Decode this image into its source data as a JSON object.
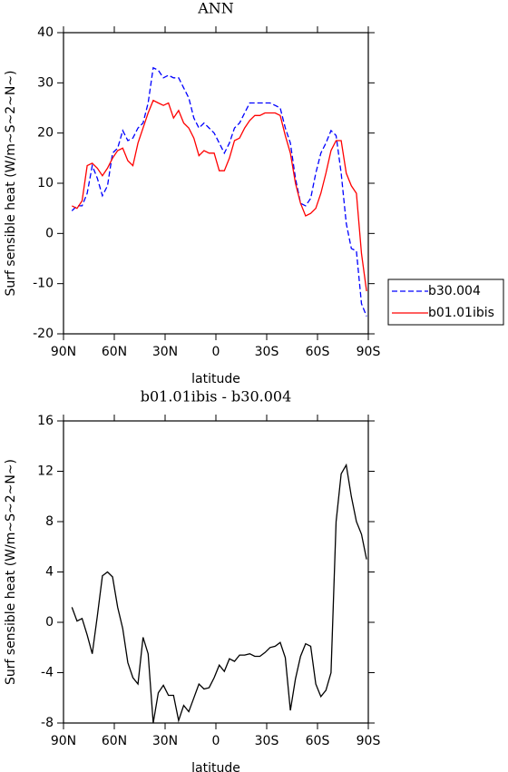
{
  "chart_data": [
    {
      "type": "line",
      "title": "ANN",
      "xlabel": "latitude",
      "ylabel": "Surf sensible heat (W/m~S~2~N~)",
      "x": [
        85,
        82,
        79,
        76,
        73,
        70,
        67,
        64,
        61,
        58,
        55,
        52,
        49,
        46,
        43,
        40,
        37,
        34,
        31,
        28,
        25,
        22,
        19,
        16,
        13,
        10,
        7,
        4,
        1,
        -2,
        -5,
        -8,
        -11,
        -14,
        -17,
        -20,
        -23,
        -26,
        -29,
        -32,
        -35,
        -38,
        -41,
        -44,
        -47,
        -50,
        -53,
        -56,
        -59,
        -62,
        -65,
        -68,
        -71,
        -74,
        -77,
        -80,
        -83,
        -86,
        -89
      ],
      "xlim": [
        90,
        -90
      ],
      "xticks": [
        {
          "value": 90,
          "label": "90N"
        },
        {
          "value": 60,
          "label": "60N"
        },
        {
          "value": 30,
          "label": "30N"
        },
        0,
        {
          "value": -30,
          "label": "30S"
        },
        {
          "value": -60,
          "label": "60S"
        },
        {
          "value": -90,
          "label": "90S"
        }
      ],
      "ylim": [
        -20,
        40
      ],
      "yticks": [
        -20,
        -10,
        0,
        10,
        20,
        30,
        40
      ],
      "legend": "right",
      "series": [
        {
          "name": "b30.004",
          "color": "#0000ff",
          "dash": true,
          "values": [
            4.5,
            5.5,
            5.5,
            8,
            13.5,
            11,
            7.5,
            9.5,
            16,
            17,
            20.5,
            18.5,
            19,
            21,
            22,
            26,
            33,
            32.5,
            31,
            31.5,
            31,
            31,
            29,
            27,
            23,
            21,
            22,
            21,
            20,
            18,
            16,
            18,
            21,
            22,
            24,
            26,
            26,
            26,
            26,
            26,
            25.5,
            25,
            21,
            18,
            11,
            6,
            5.5,
            7,
            12,
            16,
            18,
            20.5,
            19.5,
            12,
            2,
            -3,
            -3.5,
            -14,
            -16.5
          ]
        },
        {
          "name": "b01.01ibis",
          "color": "#ff0000",
          "dash": false,
          "values": [
            5.5,
            5,
            6.5,
            13.5,
            14,
            13,
            11.5,
            13,
            15,
            16.5,
            17,
            14.5,
            13.5,
            18,
            21,
            24,
            26.5,
            26,
            25.5,
            26,
            23,
            24.5,
            22,
            21,
            19,
            15.5,
            16.5,
            16,
            16,
            12.5,
            12.5,
            15,
            18.5,
            19,
            21,
            22.5,
            23.5,
            23.5,
            24,
            24,
            24,
            23.5,
            19.5,
            16,
            10,
            6,
            3.5,
            4,
            5,
            8,
            12,
            16.5,
            18.5,
            18.5,
            12,
            9.5,
            8,
            -4,
            -11.5
          ]
        }
      ]
    },
    {
      "type": "line",
      "title": "b01.01ibis - b30.004",
      "xlabel": "latitude",
      "ylabel": "Surf sensible heat (W/m~S~2~N~)",
      "x": [
        85,
        82,
        79,
        76,
        73,
        70,
        67,
        64,
        61,
        58,
        55,
        52,
        49,
        46,
        43,
        40,
        37,
        34,
        31,
        28,
        25,
        22,
        19,
        16,
        13,
        10,
        7,
        4,
        1,
        -2,
        -5,
        -8,
        -11,
        -14,
        -17,
        -20,
        -23,
        -26,
        -29,
        -32,
        -35,
        -38,
        -41,
        -44,
        -47,
        -50,
        -53,
        -56,
        -59,
        -62,
        -65,
        -68,
        -71,
        -74,
        -77,
        -80,
        -83,
        -86,
        -89
      ],
      "xlim": [
        90,
        -90
      ],
      "xticks": [
        {
          "value": 90,
          "label": "90N"
        },
        {
          "value": 60,
          "label": "60N"
        },
        {
          "value": 30,
          "label": "30N"
        },
        0,
        {
          "value": -30,
          "label": "30S"
        },
        {
          "value": -60,
          "label": "60S"
        },
        {
          "value": -90,
          "label": "90S"
        }
      ],
      "ylim": [
        -8,
        16
      ],
      "yticks": [
        -8,
        -4,
        0,
        4,
        8,
        12,
        16
      ],
      "series": [
        {
          "color": "#000000",
          "dash": false,
          "values": [
            1.2,
            0.1,
            0.3,
            -1,
            -2.5,
            0.5,
            3.7,
            4,
            3.6,
            1.2,
            -0.5,
            -3.2,
            -4.4,
            -4.9,
            -1.2,
            -2.5,
            -8,
            -5.6,
            -5,
            -5.8,
            -5.8,
            -7.8,
            -6.6,
            -7.1,
            -6,
            -4.9,
            -5.3,
            -5.2,
            -4.4,
            -3.4,
            -3.9,
            -2.9,
            -3.1,
            -2.6,
            -2.6,
            -2.5,
            -2.7,
            -2.7,
            -2.4,
            -2,
            -1.9,
            -1.6,
            -2.8,
            -7,
            -4.5,
            -2.7,
            -1.7,
            -1.9,
            -4.9,
            -5.9,
            -5.4,
            -4,
            8,
            11.8,
            12.5,
            10,
            8,
            7,
            5
          ]
        }
      ]
    }
  ]
}
